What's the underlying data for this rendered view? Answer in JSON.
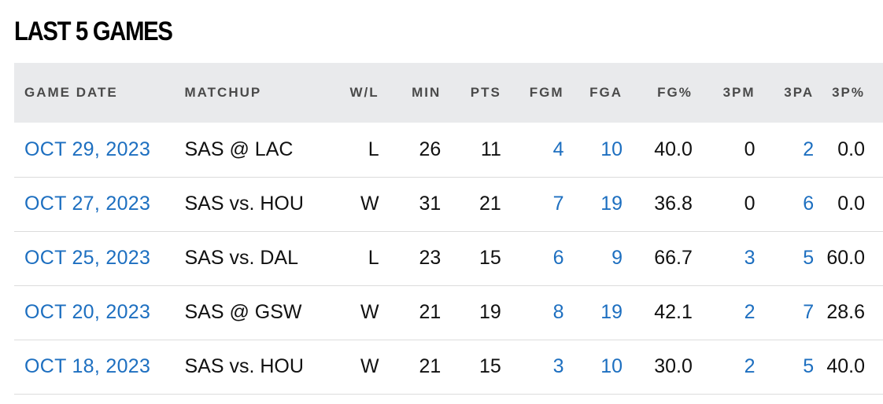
{
  "title": "LAST 5 GAMES",
  "colors": {
    "header_bg": "#e9eaec",
    "link": "#1d6fc0",
    "text": "#111111",
    "header_text": "#4a4a4a",
    "row_divider": "#dcdcdc"
  },
  "columns": [
    "GAME DATE",
    "MATCHUP",
    "W/L",
    "MIN",
    "PTS",
    "FGM",
    "FGA",
    "FG%",
    "3PM",
    "3PA",
    "3P%"
  ],
  "rows": [
    {
      "date": "OCT 29, 2023",
      "matchup": "SAS @ LAC",
      "wl": "L",
      "min": "26",
      "pts": "11",
      "fgm": "4",
      "fga": "10",
      "fgp": "40.0",
      "tpm": "0",
      "tpa": "2",
      "tpp": "0.0"
    },
    {
      "date": "OCT 27, 2023",
      "matchup": "SAS vs. HOU",
      "wl": "W",
      "min": "31",
      "pts": "21",
      "fgm": "7",
      "fga": "19",
      "fgp": "36.8",
      "tpm": "0",
      "tpa": "6",
      "tpp": "0.0"
    },
    {
      "date": "OCT 25, 2023",
      "matchup": "SAS vs. DAL",
      "wl": "L",
      "min": "23",
      "pts": "15",
      "fgm": "6",
      "fga": "9",
      "fgp": "66.7",
      "tpm": "3",
      "tpa": "5",
      "tpp": "60.0"
    },
    {
      "date": "OCT 20, 2023",
      "matchup": "SAS @ GSW",
      "wl": "W",
      "min": "21",
      "pts": "19",
      "fgm": "8",
      "fga": "19",
      "fgp": "42.1",
      "tpm": "2",
      "tpa": "7",
      "tpp": "28.6"
    },
    {
      "date": "OCT 18, 2023",
      "matchup": "SAS vs. HOU",
      "wl": "W",
      "min": "21",
      "pts": "15",
      "fgm": "3",
      "fga": "10",
      "fgp": "30.0",
      "tpm": "2",
      "tpa": "5",
      "tpp": "40.0"
    }
  ]
}
